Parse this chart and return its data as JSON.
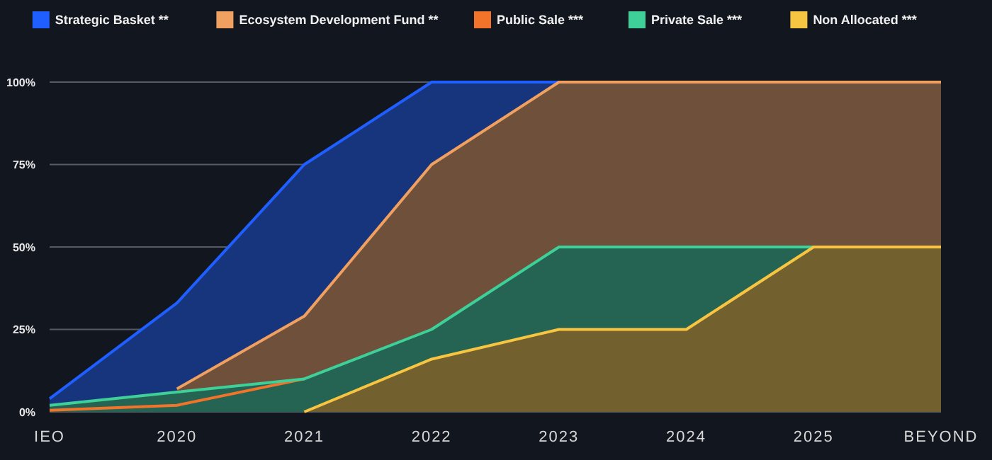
{
  "chart_data": {
    "type": "area",
    "categories": [
      "IEO",
      "2020",
      "2021",
      "2022",
      "2023",
      "2024",
      "2025",
      "BEYOND"
    ],
    "ylim": [
      0,
      100
    ],
    "yticks": [
      {
        "value": 0,
        "label": "0%"
      },
      {
        "value": 25,
        "label": "25%"
      },
      {
        "value": 50,
        "label": "50%"
      },
      {
        "value": 75,
        "label": "75%"
      },
      {
        "value": 100,
        "label": "100%"
      }
    ],
    "grid": "y",
    "legend": "top",
    "series": [
      {
        "name": "Strategic Basket **",
        "color": "#1f5fff",
        "values": [
          4,
          33,
          75,
          100,
          100,
          null,
          null,
          null
        ]
      },
      {
        "name": "Ecosystem Development Fund **",
        "color": "#f0a060",
        "values": [
          null,
          7,
          29,
          75,
          100,
          100,
          100,
          100
        ]
      },
      {
        "name": "Public Sale ***",
        "color": "#f2732a",
        "values": [
          0.5,
          2,
          10,
          null,
          null,
          null,
          null,
          null
        ]
      },
      {
        "name": "Private Sale ***",
        "color": "#3fcf98",
        "values": [
          2,
          6,
          10,
          25,
          50,
          50,
          50,
          null
        ]
      },
      {
        "name": "Non Allocated ***",
        "color": "#f7c542",
        "values": [
          null,
          null,
          0,
          16,
          25,
          25,
          50,
          50
        ]
      }
    ]
  }
}
